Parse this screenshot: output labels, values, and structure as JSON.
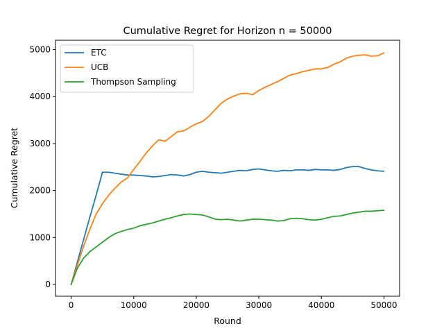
{
  "chart_data": {
    "type": "line",
    "title": "Cumulative Regret for Horizon n = 50000",
    "xlabel": "Round",
    "ylabel": "Cumulative Regret",
    "xlim": [
      -2500,
      52500
    ],
    "ylim": [
      -250,
      5200
    ],
    "xticks": [
      0,
      10000,
      20000,
      30000,
      40000,
      50000
    ],
    "yticks": [
      0,
      1000,
      2000,
      3000,
      4000,
      5000
    ],
    "grid": false,
    "legend_position": "top-left",
    "series": [
      {
        "name": "ETC",
        "color": "#1f77b4",
        "x": [
          0,
          1000,
          2000,
          3000,
          4000,
          5000,
          6000,
          7000,
          8000,
          9000,
          10000,
          11000,
          12000,
          13000,
          14000,
          15000,
          16000,
          17000,
          18000,
          19000,
          20000,
          21000,
          22000,
          23000,
          24000,
          25000,
          26000,
          27000,
          28000,
          29000,
          30000,
          31000,
          32000,
          33000,
          34000,
          35000,
          36000,
          37000,
          38000,
          39000,
          40000,
          41000,
          42000,
          43000,
          44000,
          45000,
          46000,
          47000,
          48000,
          49000,
          50000
        ],
        "y": [
          0,
          480,
          960,
          1440,
          1900,
          2390,
          2390,
          2370,
          2350,
          2330,
          2330,
          2320,
          2310,
          2290,
          2300,
          2320,
          2340,
          2330,
          2310,
          2340,
          2390,
          2410,
          2390,
          2380,
          2370,
          2390,
          2410,
          2430,
          2420,
          2450,
          2460,
          2440,
          2420,
          2410,
          2430,
          2420,
          2440,
          2440,
          2430,
          2450,
          2440,
          2440,
          2430,
          2450,
          2490,
          2510,
          2510,
          2470,
          2440,
          2420,
          2410
        ]
      },
      {
        "name": "UCB",
        "color": "#ff7f0e",
        "x": [
          0,
          1000,
          2000,
          3000,
          4000,
          5000,
          6000,
          7000,
          8000,
          9000,
          10000,
          11000,
          12000,
          13000,
          14000,
          15000,
          16000,
          17000,
          18000,
          19000,
          20000,
          21000,
          22000,
          23000,
          24000,
          25000,
          26000,
          27000,
          28000,
          29000,
          30000,
          31000,
          32000,
          33000,
          34000,
          35000,
          36000,
          37000,
          38000,
          39000,
          40000,
          41000,
          42000,
          43000,
          44000,
          45000,
          46000,
          47000,
          48000,
          49000,
          50000
        ],
        "y": [
          0,
          420,
          820,
          1180,
          1500,
          1720,
          1900,
          2050,
          2180,
          2270,
          2450,
          2620,
          2800,
          2950,
          3080,
          3050,
          3150,
          3250,
          3270,
          3350,
          3420,
          3470,
          3580,
          3720,
          3860,
          3950,
          4010,
          4060,
          4070,
          4040,
          4130,
          4200,
          4260,
          4320,
          4390,
          4460,
          4490,
          4530,
          4560,
          4590,
          4590,
          4620,
          4690,
          4740,
          4820,
          4860,
          4880,
          4890,
          4860,
          4870,
          4930
        ]
      },
      {
        "name": "Thompson Sampling",
        "color": "#2ca02c",
        "x": [
          0,
          1000,
          2000,
          3000,
          4000,
          5000,
          6000,
          7000,
          8000,
          9000,
          10000,
          11000,
          12000,
          13000,
          14000,
          15000,
          16000,
          17000,
          18000,
          19000,
          20000,
          21000,
          22000,
          23000,
          24000,
          25000,
          26000,
          27000,
          28000,
          29000,
          30000,
          31000,
          32000,
          33000,
          34000,
          35000,
          36000,
          37000,
          38000,
          39000,
          40000,
          41000,
          42000,
          43000,
          44000,
          45000,
          46000,
          47000,
          48000,
          49000,
          50000
        ],
        "y": [
          0,
          350,
          560,
          700,
          800,
          900,
          1000,
          1080,
          1130,
          1170,
          1200,
          1250,
          1280,
          1310,
          1350,
          1390,
          1420,
          1460,
          1490,
          1500,
          1490,
          1480,
          1440,
          1390,
          1380,
          1390,
          1370,
          1350,
          1370,
          1390,
          1390,
          1380,
          1370,
          1350,
          1360,
          1400,
          1410,
          1400,
          1380,
          1370,
          1390,
          1420,
          1450,
          1460,
          1490,
          1520,
          1540,
          1560,
          1560,
          1570,
          1580
        ]
      }
    ]
  }
}
